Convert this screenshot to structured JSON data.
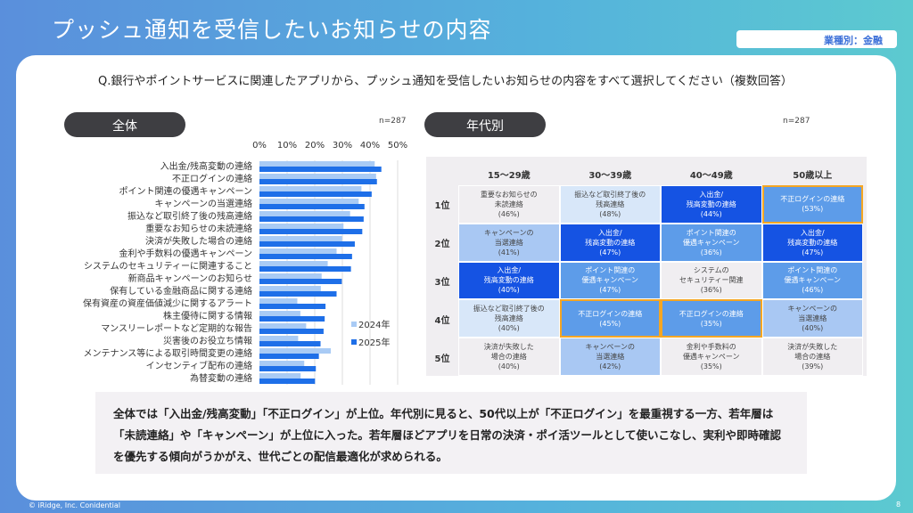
{
  "title": "プッシュ通知を受信したいお知らせの内容",
  "badge": "業種別：金融",
  "question": "Q.銀行やポイントサービスに関連したアプリから、プッシュ通知を受信したいお知らせの内容をすべて選択してください（複数回答）",
  "overall": {
    "label": "全体",
    "n": "n=287"
  },
  "by_age": {
    "label": "年代別",
    "n": "n=287"
  },
  "chart_data": {
    "type": "bar",
    "orientation": "horizontal",
    "xlim": [
      0,
      50
    ],
    "xticks": [
      "0%",
      "10%",
      "20%",
      "30%",
      "40%",
      "50%"
    ],
    "categories": [
      "入出金/残高変動の連絡",
      "不正ログインの連絡",
      "ポイント関連の優遇キャンペーン",
      "キャンペーンの当選連絡",
      "振込など取引終了後の残高連絡",
      "重要なお知らせの未読連絡",
      "決済が失敗した場合の連絡",
      "金利や手数料の優遇キャンペーン",
      "システムのセキュリティーに関連すること",
      "新商品キャンペーンのお知らせ",
      "保有している金融商品に関する連絡",
      "保有資産の資産価値減少に関するアラート",
      "株主優待に関する情報",
      "マンスリーレポートなど定期的な報告",
      "災害後のお役立ち情報",
      "メンテナンス等による取引時間変更の連絡",
      "インセンティブ配布の連絡",
      "為替変動の連絡"
    ],
    "series": [
      {
        "name": "2024年",
        "color": "#a9cbf5",
        "values": [
          41.7,
          42.2,
          36.9,
          35.9,
          32.8,
          30.4,
          29.9,
          27.9,
          24.7,
          22.5,
          22.2,
          13.7,
          14.8,
          16.9,
          14.0,
          25.8,
          16.2,
          14.9
        ]
      },
      {
        "name": "2025年",
        "color": "#1e6fe8",
        "values": [
          44.1,
          42.5,
          40.6,
          38.0,
          37.7,
          37.2,
          34.5,
          33.5,
          33.1,
          29.8,
          27.9,
          23.9,
          23.6,
          23.2,
          22.1,
          21.5,
          20.4,
          20.1
        ]
      }
    ],
    "legend": "bottom-right"
  },
  "table": {
    "headers": [
      "15〜29歳",
      "30〜39歳",
      "40〜49歳",
      "50歳以上"
    ],
    "rows": [
      {
        "rank": "1位",
        "cells": [
          {
            "text": "重要なお知らせの\n未読連絡",
            "pct": "(46%)",
            "shade": "grey"
          },
          {
            "text": "振込など取引終了後の\n残高連絡",
            "pct": "(48%)",
            "shade": "vlight"
          },
          {
            "text": "入出金/\n残高変動の連絡",
            "pct": "(44%)",
            "shade": "dark"
          },
          {
            "text": "不正ログインの連絡",
            "pct": "(53%)",
            "shade": "medium",
            "highlight": true
          }
        ]
      },
      {
        "rank": "2位",
        "cells": [
          {
            "text": "キャンペーンの\n当選連絡",
            "pct": "(41%)",
            "shade": "light"
          },
          {
            "text": "入出金/\n残高変動の連絡",
            "pct": "(47%)",
            "shade": "dark"
          },
          {
            "text": "ポイント関連の\n優遇キャンペーン",
            "pct": "(36%)",
            "shade": "medium"
          },
          {
            "text": "入出金/\n残高変動の連絡",
            "pct": "(47%)",
            "shade": "dark"
          }
        ]
      },
      {
        "rank": "3位",
        "cells": [
          {
            "text": "入出金/\n残高変動の連絡",
            "pct": "(40%)",
            "shade": "dark"
          },
          {
            "text": "ポイント関連の\n優遇キャンペーン",
            "pct": "(47%)",
            "shade": "medium"
          },
          {
            "text": "システムの\nセキュリティー関連",
            "pct": "(36%)",
            "shade": "grey"
          },
          {
            "text": "ポイント関連の\n優遇キャンペーン",
            "pct": "(46%)",
            "shade": "medium"
          }
        ]
      },
      {
        "rank": "4位",
        "cells": [
          {
            "text": "振込など取引終了後の\n残高連絡",
            "pct": "(40%)",
            "shade": "vlight"
          },
          {
            "text": "不正ログインの連絡",
            "pct": "(45%)",
            "shade": "medium",
            "highlight": true
          },
          {
            "text": "不正ログインの連絡",
            "pct": "(35%)",
            "shade": "medium",
            "highlight": true
          },
          {
            "text": "キャンペーンの\n当選連絡",
            "pct": "(40%)",
            "shade": "light"
          }
        ]
      },
      {
        "rank": "5位",
        "cells": [
          {
            "text": "決済が失敗した\n場合の連絡",
            "pct": "(40%)",
            "shade": "grey"
          },
          {
            "text": "キャンペーンの\n当選連絡",
            "pct": "(42%)",
            "shade": "light"
          },
          {
            "text": "金利や手数料の\n優遇キャンペーン",
            "pct": "(35%)",
            "shade": "grey"
          },
          {
            "text": "決済が失敗した\n場合の連絡",
            "pct": "(39%)",
            "shade": "grey"
          }
        ]
      }
    ]
  },
  "summary": "全体では「入出金/残高変動」「不正ログイン」が上位。年代別に見ると、50代以上が「不正ログイン」を最重視する一方、若年層は「未読連絡」や「キャンペーン」が上位に入った。若年層ほどアプリを日常の決済・ポイ活ツールとして使いこなし、実利や即時確認を優先する傾向がうかがえ、世代ごとの配信最適化が求められる。",
  "footer": "© iRidge, Inc. Conidential",
  "page_number": "8"
}
